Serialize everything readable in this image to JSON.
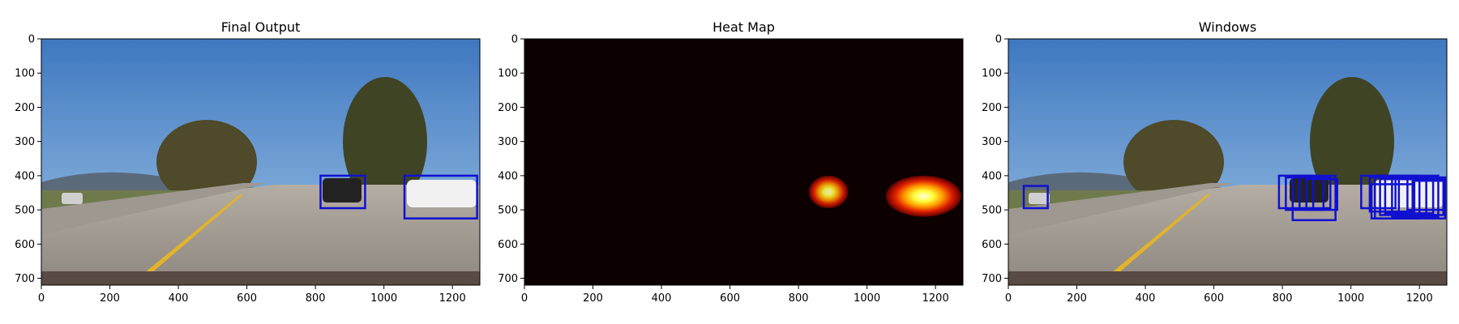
{
  "figure": {
    "panels": [
      {
        "id": "final-output",
        "title": "Final Output"
      },
      {
        "id": "heat-map",
        "title": "Heat Map"
      },
      {
        "id": "windows",
        "title": "Windows"
      }
    ]
  },
  "chart_data": [
    {
      "type": "image",
      "title": "Final Output",
      "xlim": [
        0,
        1280
      ],
      "ylim": [
        720,
        0
      ],
      "xticks": [
        0,
        200,
        400,
        600,
        800,
        1000,
        1200
      ],
      "yticks": [
        0,
        100,
        200,
        300,
        400,
        500,
        600,
        700
      ],
      "content": "road-scene",
      "box_color": "#1010d0",
      "boxes": [
        {
          "x1": 815,
          "y1": 400,
          "x2": 945,
          "y2": 495
        },
        {
          "x1": 1060,
          "y1": 400,
          "x2": 1272,
          "y2": 525
        }
      ]
    },
    {
      "type": "heatmap",
      "title": "Heat Map",
      "xlim": [
        0,
        1280
      ],
      "ylim": [
        720,
        0
      ],
      "xticks": [
        0,
        200,
        400,
        600,
        800,
        1000,
        1200
      ],
      "yticks": [
        0,
        100,
        200,
        300,
        400,
        500,
        600,
        700
      ],
      "colormap": "hot",
      "background_color": "#0c0000",
      "blobs": [
        {
          "x1": 830,
          "y1": 400,
          "x2": 945,
          "y2": 495,
          "peak": 0.9
        },
        {
          "x1": 1055,
          "y1": 400,
          "x2": 1275,
          "y2": 520,
          "peak": 1.0
        }
      ]
    },
    {
      "type": "image",
      "title": "Windows",
      "xlim": [
        0,
        1280
      ],
      "ylim": [
        720,
        0
      ],
      "xticks": [
        0,
        200,
        400,
        600,
        800,
        1000,
        1200
      ],
      "yticks": [
        0,
        100,
        200,
        300,
        400,
        500,
        600,
        700
      ],
      "content": "road-scene",
      "box_color": "#1010d0",
      "boxes": [
        {
          "x1": 45,
          "y1": 430,
          "x2": 115,
          "y2": 495
        },
        {
          "x1": 790,
          "y1": 400,
          "x2": 890,
          "y2": 495
        },
        {
          "x1": 810,
          "y1": 405,
          "x2": 920,
          "y2": 500
        },
        {
          "x1": 830,
          "y1": 400,
          "x2": 955,
          "y2": 530
        },
        {
          "x1": 850,
          "y1": 405,
          "x2": 940,
          "y2": 495
        },
        {
          "x1": 870,
          "y1": 410,
          "x2": 960,
          "y2": 500
        },
        {
          "x1": 1030,
          "y1": 400,
          "x2": 1130,
          "y2": 495
        },
        {
          "x1": 1055,
          "y1": 405,
          "x2": 1180,
          "y2": 505
        },
        {
          "x1": 1070,
          "y1": 400,
          "x2": 1200,
          "y2": 525
        },
        {
          "x1": 1085,
          "y1": 410,
          "x2": 1220,
          "y2": 515
        },
        {
          "x1": 1100,
          "y1": 405,
          "x2": 1240,
          "y2": 510
        },
        {
          "x1": 1120,
          "y1": 400,
          "x2": 1255,
          "y2": 520
        },
        {
          "x1": 1140,
          "y1": 410,
          "x2": 1270,
          "y2": 515
        },
        {
          "x1": 1165,
          "y1": 405,
          "x2": 1275,
          "y2": 500
        },
        {
          "x1": 1185,
          "y1": 415,
          "x2": 1275,
          "y2": 525
        },
        {
          "x1": 1060,
          "y1": 425,
          "x2": 1180,
          "y2": 525
        }
      ]
    }
  ]
}
